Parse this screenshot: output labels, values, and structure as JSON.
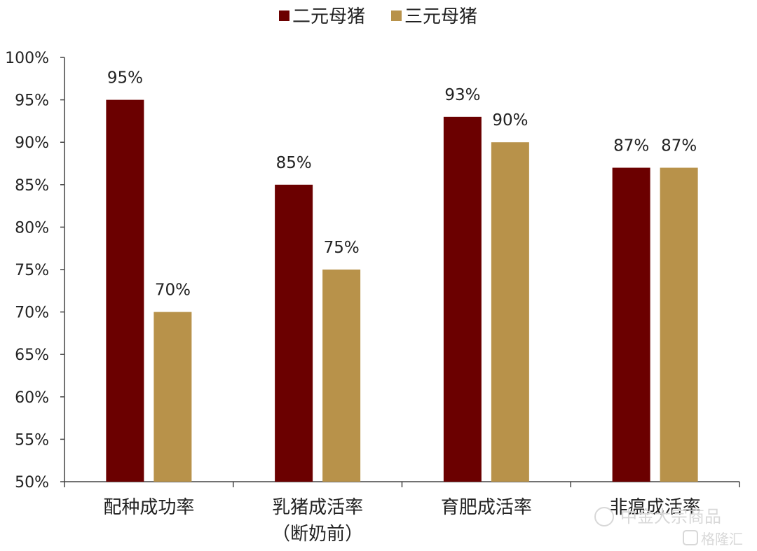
{
  "chart_data": {
    "type": "bar",
    "categories": [
      [
        "配种成功率"
      ],
      [
        "乳猪成活率",
        "（断奶前）"
      ],
      [
        "育肥成活率"
      ],
      [
        "非瘟成活率"
      ]
    ],
    "series": [
      {
        "name": "二元母猪",
        "values": [
          95,
          85,
          93,
          87
        ],
        "color": "#6b0000"
      },
      {
        "name": "三元母猪",
        "values": [
          70,
          75,
          90,
          87
        ],
        "color": "#b8924a"
      }
    ],
    "data_labels": [
      [
        "95%",
        "85%",
        "93%",
        "87%"
      ],
      [
        "70%",
        "75%",
        "90%",
        "87%"
      ]
    ],
    "yticks": [
      "50%",
      "55%",
      "60%",
      "65%",
      "70%",
      "75%",
      "80%",
      "85%",
      "90%",
      "95%",
      "100%"
    ],
    "ylim": [
      50,
      100
    ],
    "legend_position": "top-center",
    "grid": false
  },
  "watermark": {
    "text1": "中金大宗商品",
    "text2": "格隆汇"
  }
}
